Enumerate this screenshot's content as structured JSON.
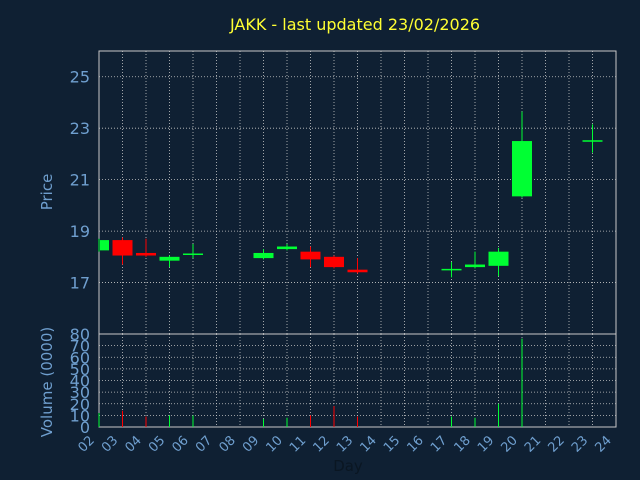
{
  "colors": {
    "background": "#0f2033",
    "title": "#ffff33",
    "axis_text": "#6f9fcf",
    "grid": "#c8c8c8",
    "up": "#00ff33",
    "down": "#ff0000"
  },
  "chart_data": {
    "type": "candlestick",
    "title": "JAKK - last updated 23/02/2026",
    "xlabel": "Day",
    "ylabel": "Price",
    "volume_label": "Volume (0000)",
    "grid": true,
    "x_ticks": [
      "02",
      "03",
      "04",
      "05",
      "06",
      "07",
      "08",
      "09",
      "10",
      "11",
      "12",
      "13",
      "14",
      "15",
      "16",
      "17",
      "18",
      "19",
      "20",
      "21",
      "22",
      "23",
      "24"
    ],
    "price_range": [
      15.0,
      26.0
    ],
    "price_ticks": [
      17,
      19,
      21,
      23,
      25
    ],
    "volume_range": [
      0,
      80
    ],
    "volume_ticks": [
      0,
      10,
      20,
      30,
      40,
      50,
      60,
      70,
      80
    ],
    "candles": [
      {
        "day": "02",
        "open": 18.25,
        "close": 18.65,
        "high": 18.7,
        "low": 18.2,
        "volume": 12
      },
      {
        "day": "03",
        "open": 18.65,
        "close": 18.05,
        "high": 18.75,
        "low": 17.7,
        "volume": 14
      },
      {
        "day": "04",
        "open": 18.15,
        "close": 18.05,
        "high": 18.7,
        "low": 18.0,
        "volume": 9
      },
      {
        "day": "05",
        "open": 17.85,
        "close": 18.0,
        "high": 18.05,
        "low": 17.6,
        "volume": 10
      },
      {
        "day": "06",
        "open": 18.05,
        "close": 18.1,
        "high": 18.5,
        "low": 17.95,
        "volume": 10
      },
      {
        "day": "09",
        "open": 17.95,
        "close": 18.15,
        "high": 18.3,
        "low": 17.9,
        "volume": 7
      },
      {
        "day": "10",
        "open": 18.3,
        "close": 18.4,
        "high": 18.5,
        "low": 18.25,
        "volume": 8
      },
      {
        "day": "11",
        "open": 18.2,
        "close": 17.9,
        "high": 18.4,
        "low": 17.6,
        "volume": 10
      },
      {
        "day": "12",
        "open": 18.0,
        "close": 17.6,
        "high": 18.05,
        "low": 17.55,
        "volume": 18
      },
      {
        "day": "13",
        "open": 17.5,
        "close": 17.4,
        "high": 17.95,
        "low": 17.35,
        "volume": 9
      },
      {
        "day": "17",
        "open": 17.5,
        "close": 17.5,
        "high": 17.8,
        "low": 17.2,
        "volume": 9
      },
      {
        "day": "18",
        "open": 17.6,
        "close": 17.7,
        "high": 18.2,
        "low": 17.55,
        "volume": 8
      },
      {
        "day": "19",
        "open": 17.65,
        "close": 18.2,
        "high": 18.35,
        "low": 17.25,
        "volume": 20
      },
      {
        "day": "20",
        "open": 20.35,
        "close": 22.5,
        "high": 23.65,
        "low": 20.3,
        "volume": 76
      },
      {
        "day": "23",
        "open": 22.5,
        "close": 22.5,
        "high": 23.15,
        "low": 22.05,
        "volume": 0
      }
    ]
  }
}
